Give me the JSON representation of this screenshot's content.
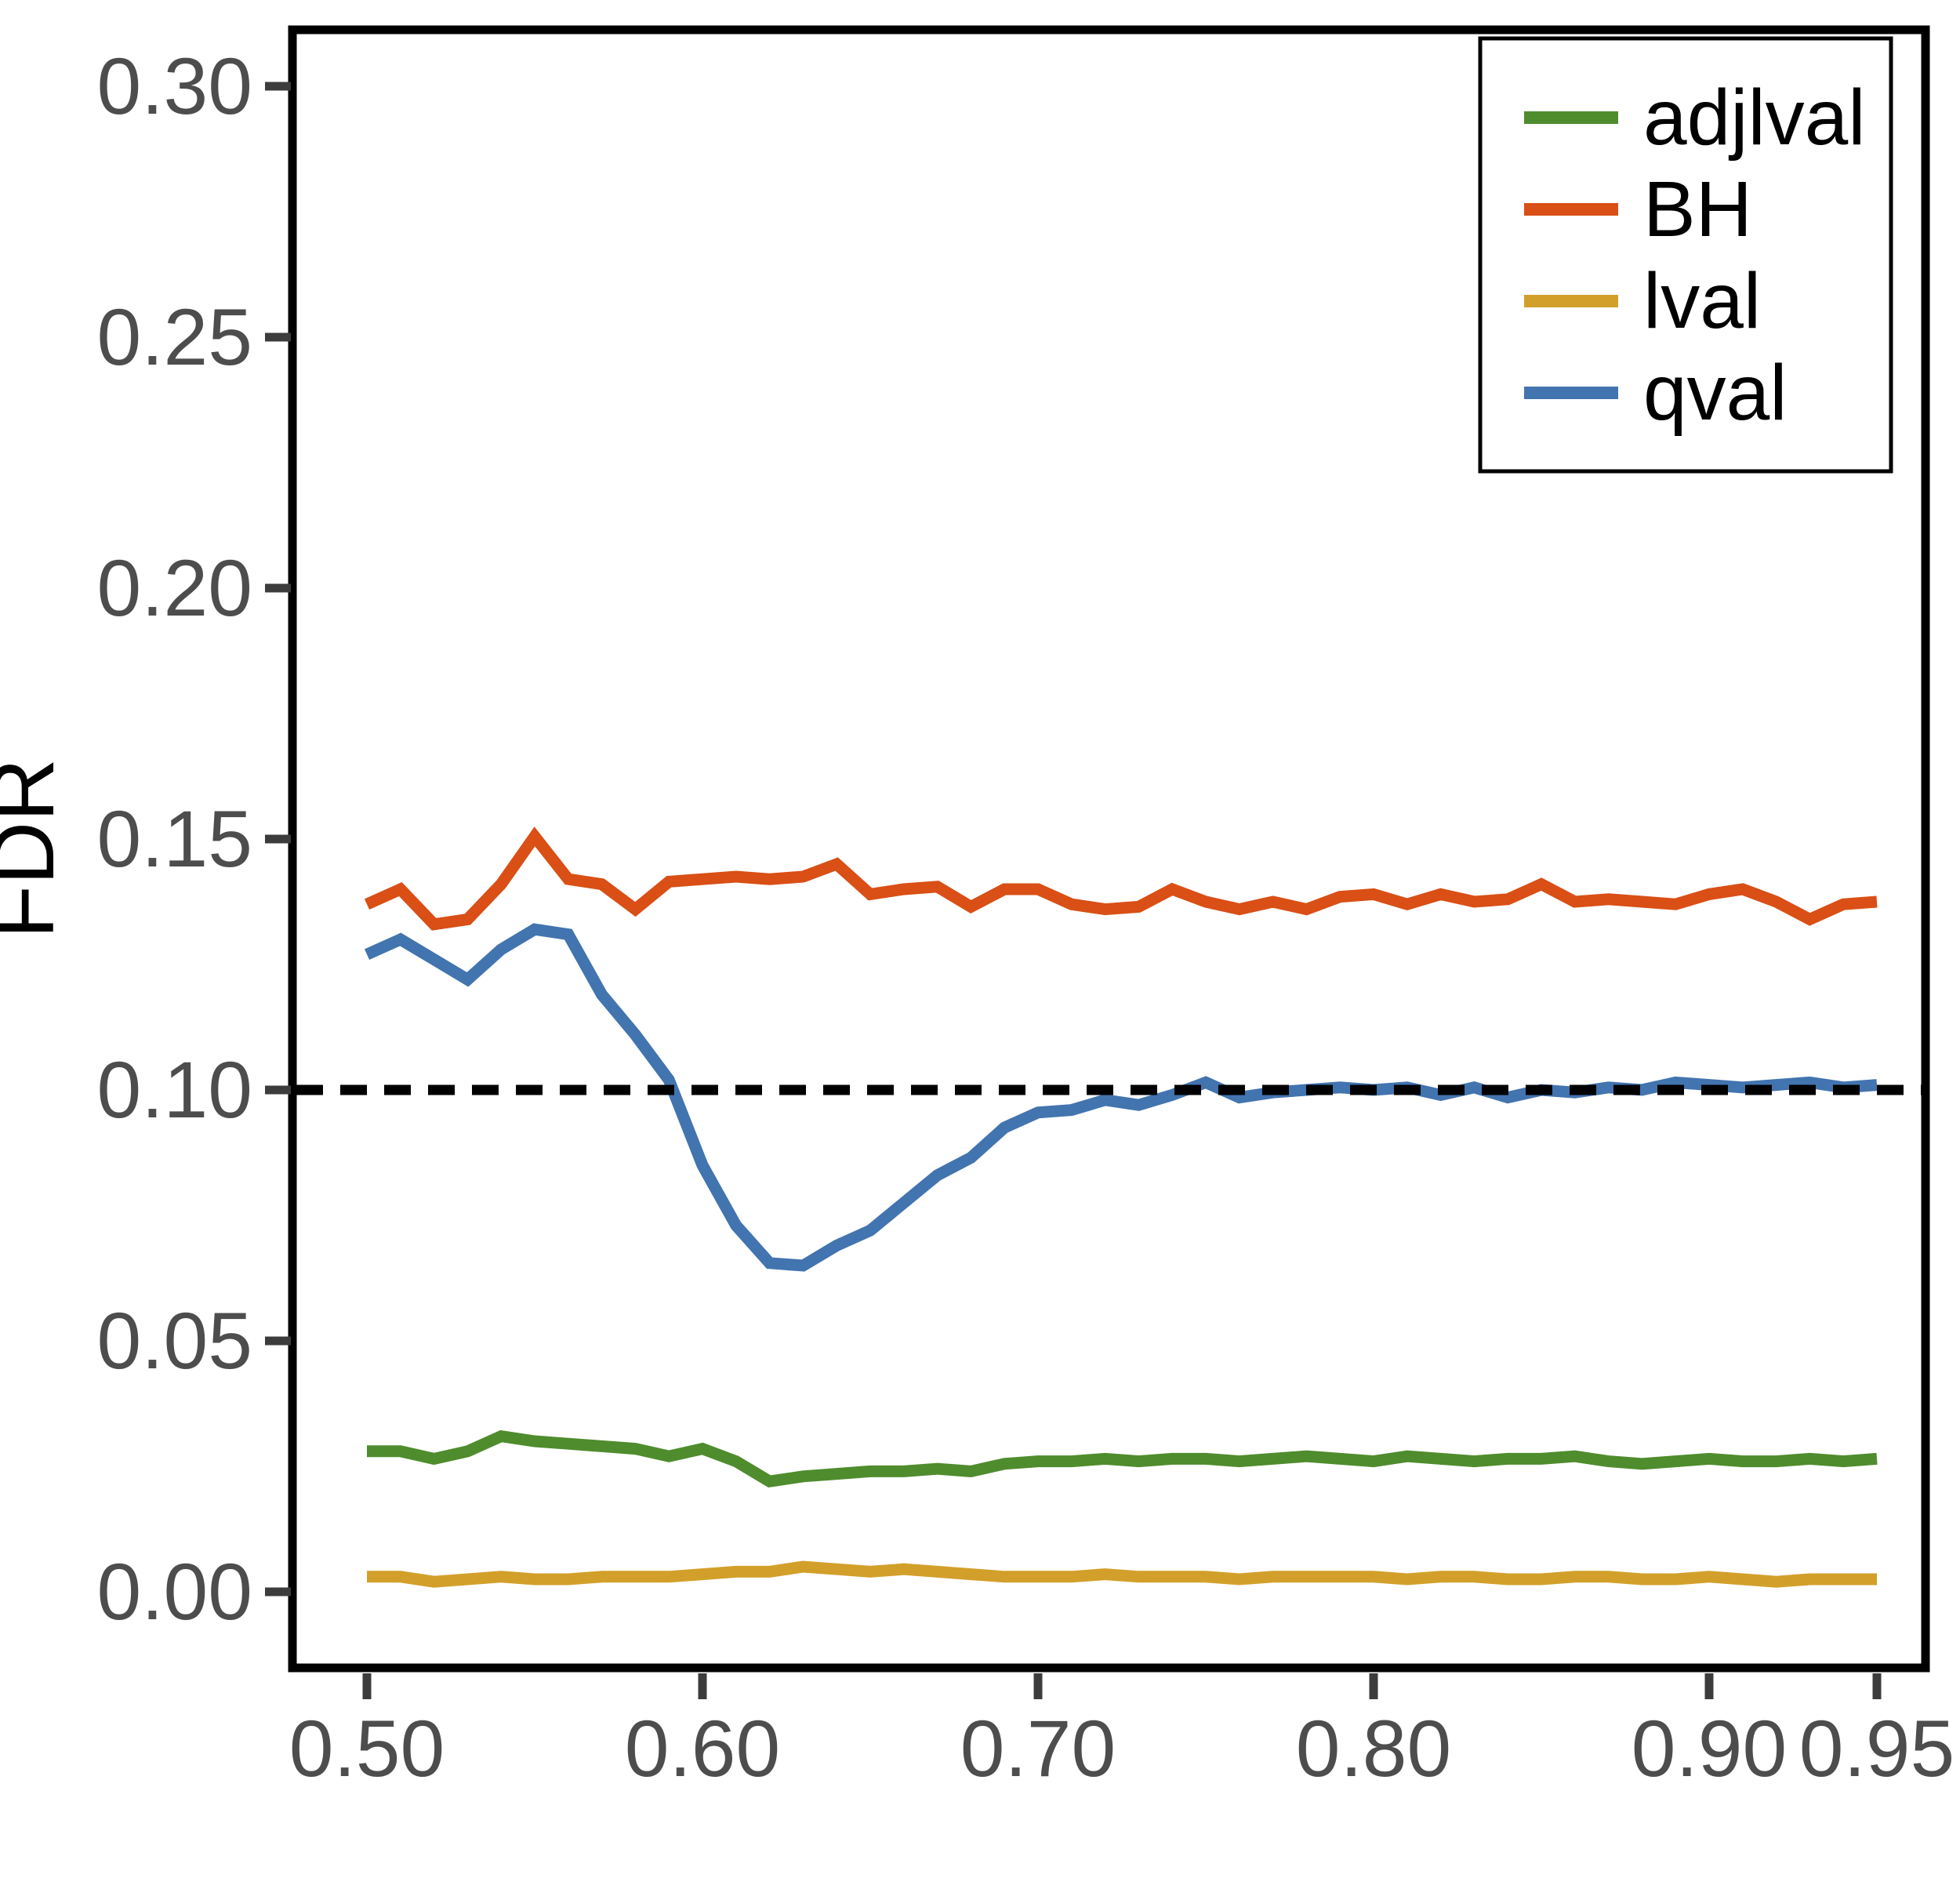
{
  "figure": {
    "background": "#ffffff",
    "description": "FDR comparison line chart with dashed 0.10 threshold"
  },
  "axes": {
    "ylabel": "FDR",
    "xlabel": "",
    "tick_label_color": "#4d4d4d",
    "tick_mark_color": "#3c3c3c",
    "border_color": "#000000",
    "y_ticks": {
      "values": [
        0.0,
        0.05,
        0.1,
        0.15,
        0.2,
        0.25,
        0.3
      ],
      "labels": [
        "0.00",
        "0.05",
        "0.10",
        "0.15",
        "0.20",
        "0.25",
        "0.30"
      ]
    },
    "x_ticks": {
      "values": [
        0.5,
        0.6,
        0.7,
        0.8,
        0.9,
        0.95
      ],
      "labels": [
        "0.50",
        "0.60",
        "0.70",
        "0.80",
        "0.90",
        "0.95"
      ]
    }
  },
  "legend": {
    "position": "top-right",
    "border_color": "#000000",
    "fill": "#ffffff",
    "entries": [
      "adjlval",
      "BH",
      "lval",
      "qval"
    ]
  },
  "chart_data": {
    "type": "line",
    "title": "",
    "xlabel": "",
    "ylabel": "FDR",
    "xlim": [
      0.478,
      0.965
    ],
    "ylim": [
      -0.015,
      0.311
    ],
    "grid": false,
    "legend_position": "top-right",
    "x": [
      0.5,
      0.51,
      0.52,
      0.53,
      0.54,
      0.55,
      0.56,
      0.57,
      0.58,
      0.59,
      0.6,
      0.61,
      0.62,
      0.63,
      0.64,
      0.65,
      0.66,
      0.67,
      0.68,
      0.69,
      0.7,
      0.71,
      0.72,
      0.73,
      0.74,
      0.75,
      0.76,
      0.77,
      0.78,
      0.79,
      0.8,
      0.81,
      0.82,
      0.83,
      0.84,
      0.85,
      0.86,
      0.87,
      0.88,
      0.89,
      0.9,
      0.91,
      0.92,
      0.93,
      0.94,
      0.95
    ],
    "series": [
      {
        "name": "adjlval",
        "color": "#4f8c2d",
        "values": [
          0.028,
          0.028,
          0.0265,
          0.028,
          0.031,
          0.03,
          0.0295,
          0.029,
          0.0285,
          0.027,
          0.0285,
          0.026,
          0.022,
          0.023,
          0.0235,
          0.024,
          0.024,
          0.0245,
          0.024,
          0.0255,
          0.026,
          0.026,
          0.0265,
          0.026,
          0.0265,
          0.0265,
          0.026,
          0.0265,
          0.027,
          0.0265,
          0.026,
          0.027,
          0.0265,
          0.026,
          0.0265,
          0.0265,
          0.027,
          0.026,
          0.0255,
          0.026,
          0.0265,
          0.026,
          0.026,
          0.0265,
          0.026,
          0.0265
        ]
      },
      {
        "name": "BH",
        "color": "#d94f16",
        "values": [
          0.137,
          0.14,
          0.133,
          0.134,
          0.141,
          0.1505,
          0.142,
          0.141,
          0.136,
          0.1415,
          0.142,
          0.1425,
          0.142,
          0.1425,
          0.145,
          0.139,
          0.14,
          0.1405,
          0.1365,
          0.14,
          0.14,
          0.137,
          0.136,
          0.1365,
          0.14,
          0.1375,
          0.136,
          0.1375,
          0.136,
          0.1385,
          0.139,
          0.137,
          0.139,
          0.1375,
          0.138,
          0.141,
          0.1375,
          0.138,
          0.1375,
          0.137,
          0.139,
          0.14,
          0.1375,
          0.134,
          0.137,
          0.1375
        ]
      },
      {
        "name": "lval",
        "color": "#d2a02a",
        "values": [
          0.003,
          0.003,
          0.002,
          0.0025,
          0.003,
          0.0025,
          0.0025,
          0.003,
          0.003,
          0.003,
          0.0035,
          0.004,
          0.004,
          0.005,
          0.0045,
          0.004,
          0.0045,
          0.004,
          0.0035,
          0.003,
          0.003,
          0.003,
          0.0035,
          0.003,
          0.003,
          0.003,
          0.0025,
          0.003,
          0.003,
          0.003,
          0.003,
          0.0025,
          0.003,
          0.003,
          0.0025,
          0.0025,
          0.003,
          0.003,
          0.0025,
          0.0025,
          0.003,
          0.0025,
          0.002,
          0.0025,
          0.0025,
          0.0025
        ]
      },
      {
        "name": "qval",
        "color": "#4274af",
        "values": [
          0.127,
          0.13,
          0.126,
          0.122,
          0.128,
          0.132,
          0.131,
          0.119,
          0.111,
          0.102,
          0.085,
          0.073,
          0.0655,
          0.065,
          0.069,
          0.072,
          0.0775,
          0.083,
          0.0865,
          0.0925,
          0.0955,
          0.096,
          0.098,
          0.097,
          0.099,
          0.1015,
          0.0985,
          0.0995,
          0.1,
          0.1005,
          0.1,
          0.1005,
          0.099,
          0.1005,
          0.0985,
          0.1,
          0.0995,
          0.1005,
          0.1,
          0.1015,
          0.101,
          0.1005,
          0.101,
          0.1015,
          0.1005,
          0.101
        ]
      }
    ],
    "reference_line": {
      "y": 0.1,
      "style": "dashed",
      "color": "#000000"
    }
  }
}
